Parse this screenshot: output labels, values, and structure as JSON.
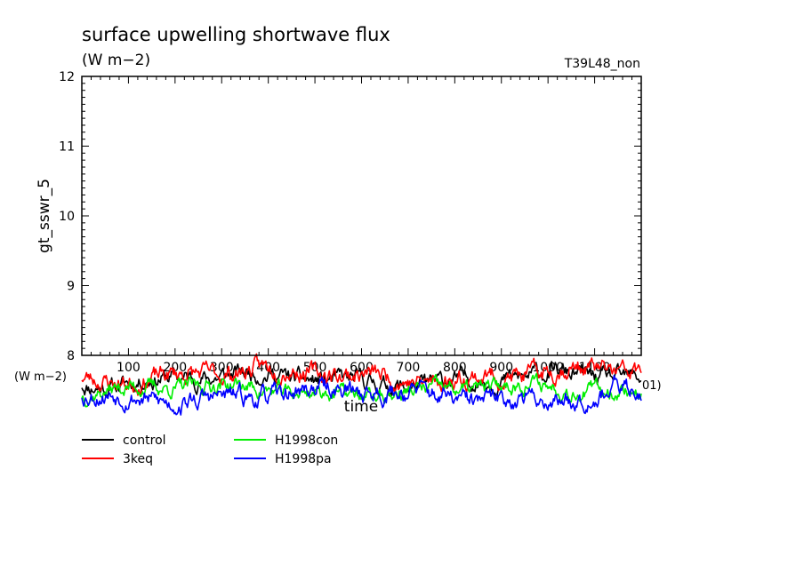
{
  "chart_data": {
    "type": "line",
    "title": "surface upwelling shortwave flux",
    "units": "(W m−2)",
    "run_label": "T39L48_non",
    "ylabel": "gt_sswr_5",
    "xlabel": "time",
    "ylim": [
      8,
      12
    ],
    "yticks": [
      "8",
      "9",
      "10",
      "11",
      "12"
    ],
    "xlim": [
      0,
      1200
    ],
    "xticks": [
      "100",
      "200",
      "300",
      "400",
      "500",
      "600",
      "700",
      "800",
      "900",
      "1000",
      "1100"
    ],
    "x_units_label": "(W m−2)",
    "x_end_label": "01)",
    "grid": false,
    "legend_position": "bottom-left",
    "series": [
      {
        "name": "control",
        "color": "#000000",
        "base": 7.65,
        "amp": 0.12,
        "seed": 11
      },
      {
        "name": "3keq",
        "color": "#ff0000",
        "base": 7.72,
        "amp": 0.13,
        "seed": 23
      },
      {
        "name": "H1998con",
        "color": "#00ee00",
        "base": 7.5,
        "amp": 0.11,
        "seed": 37
      },
      {
        "name": "H1998pa",
        "color": "#0000ff",
        "base": 7.43,
        "amp": 0.13,
        "seed": 53
      }
    ]
  }
}
